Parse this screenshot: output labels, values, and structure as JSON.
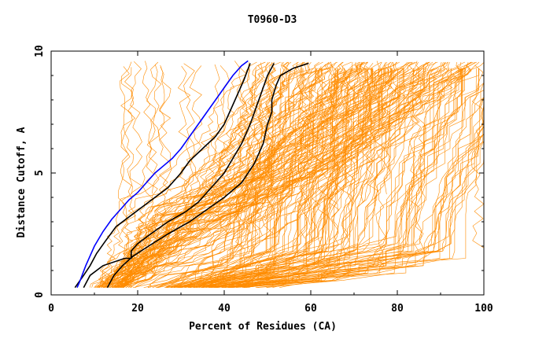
{
  "chart_data": {
    "type": "line",
    "title": "T0960-D3",
    "xlabel": "Percent of Residues (CA)",
    "ylabel": "Distance Cutoff, A",
    "xlim": [
      0,
      100
    ],
    "ylim": [
      0,
      10
    ],
    "xticks": [
      0,
      20,
      40,
      60,
      80,
      100
    ],
    "yticks": [
      0,
      5,
      10
    ],
    "grid": false,
    "colors": {
      "background_series": "#ff8c00",
      "highlight": "#000000",
      "best": "#0000ff",
      "axes": "#000000"
    },
    "series": [
      {
        "role": "highlight",
        "color": "#000000",
        "x": [
          5.5,
          7.5,
          9,
          10.5,
          12.5,
          15,
          18,
          21,
          24,
          27,
          30,
          32,
          35,
          38,
          40,
          42.5,
          44.5,
          46
        ],
        "y": [
          0.3,
          0.8,
          1.2,
          1.7,
          2.2,
          2.8,
          3.2,
          3.6,
          4.0,
          4.4,
          5.0,
          5.5,
          6.0,
          6.5,
          7.0,
          8.0,
          8.8,
          9.5
        ]
      },
      {
        "role": "highlight",
        "color": "#000000",
        "x": [
          7.5,
          9,
          12,
          17,
          18.5,
          18.5,
          20,
          23,
          27,
          31,
          34,
          37,
          40,
          42,
          44,
          46,
          48,
          50,
          51.5
        ],
        "y": [
          0.3,
          0.8,
          1.2,
          1.5,
          1.5,
          1.8,
          2.1,
          2.5,
          3.0,
          3.4,
          3.8,
          4.4,
          5.0,
          5.6,
          6.2,
          7.0,
          8.0,
          9.0,
          9.5
        ]
      },
      {
        "role": "highlight",
        "color": "#000000",
        "x": [
          13,
          14.5,
          16.5,
          19,
          22.5,
          27,
          32,
          36,
          40,
          44,
          47,
          49,
          50,
          51,
          51,
          52,
          53,
          56,
          59.5
        ],
        "y": [
          0.3,
          0.8,
          1.2,
          1.6,
          2.0,
          2.5,
          3.0,
          3.5,
          4.0,
          4.6,
          5.4,
          6.2,
          7.0,
          7.5,
          8.0,
          8.6,
          9.0,
          9.3,
          9.5
        ]
      },
      {
        "role": "best",
        "color": "#0000ff",
        "x": [
          6,
          6.5,
          8,
          9,
          10,
          12,
          14,
          16,
          18,
          20,
          22,
          24,
          26,
          28,
          30,
          32,
          34,
          36,
          38,
          40,
          42,
          44,
          45.5
        ],
        "y": [
          0.3,
          0.5,
          1.2,
          1.6,
          2.0,
          2.6,
          3.1,
          3.5,
          3.9,
          4.2,
          4.6,
          5.0,
          5.3,
          5.6,
          6.0,
          6.5,
          7.0,
          7.5,
          8.0,
          8.5,
          9.0,
          9.4,
          9.6
        ]
      }
    ]
  }
}
